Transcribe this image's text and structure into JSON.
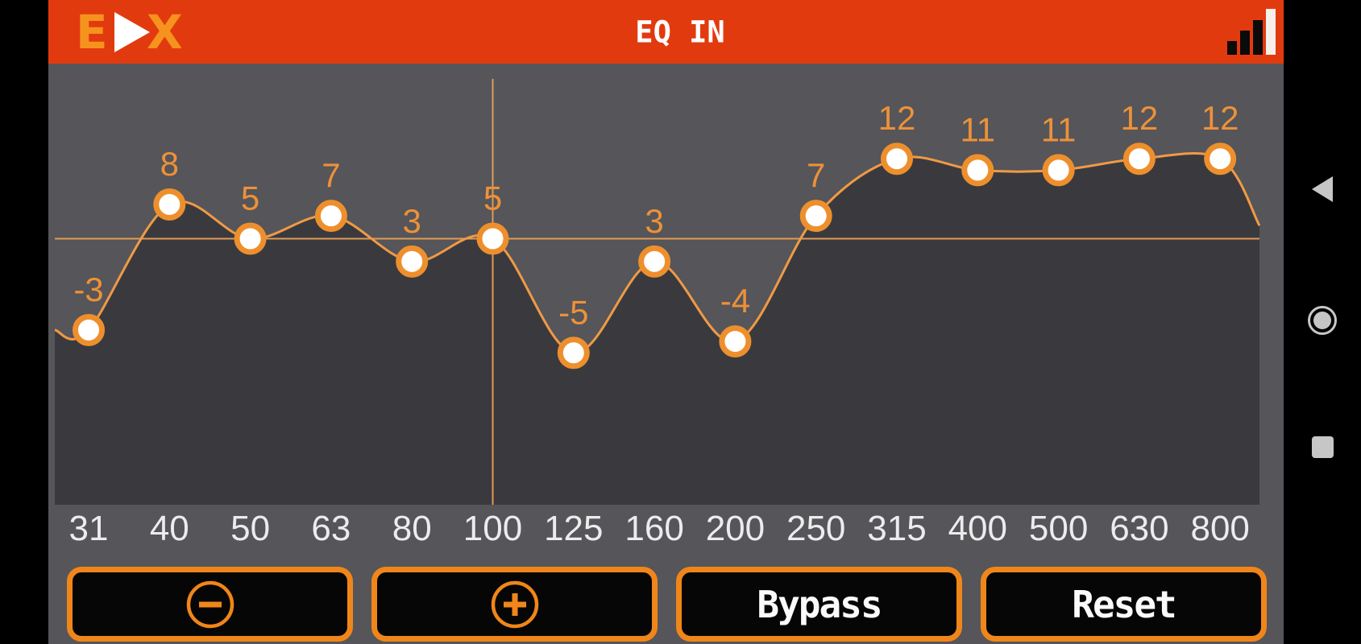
{
  "header": {
    "logo": {
      "letter_e": "E",
      "letter_x": "X"
    },
    "title": "EQ IN",
    "status_icon": "signal-bars-icon"
  },
  "chart_data": {
    "type": "line",
    "x_labels": [
      "31",
      "40",
      "50",
      "63",
      "80",
      "100",
      "125",
      "160",
      "200",
      "250",
      "315",
      "400",
      "500",
      "630",
      "800"
    ],
    "series": [
      {
        "name": "eq-band-gain-db",
        "values": [
          -3,
          8,
          5,
          7,
          3,
          5,
          -5,
          3,
          -4,
          7,
          12,
          11,
          11,
          12,
          12
        ]
      }
    ],
    "point_labels": [
      "-3",
      "8",
      "5",
      "7",
      "3",
      "5",
      "-5",
      "3",
      "-4",
      "7",
      "12",
      "11",
      "11",
      "12",
      "12"
    ],
    "selected_band": {
      "index": 5,
      "label": "100"
    },
    "ylim": [
      -18,
      19
    ],
    "grid": false,
    "legend": false,
    "crosshair_on_selected": true
  },
  "toolbar": {
    "buttons": [
      {
        "name": "decrease",
        "icon": "minus-circle-icon",
        "label": ""
      },
      {
        "name": "increase",
        "icon": "plus-circle-icon",
        "label": ""
      },
      {
        "name": "bypass",
        "icon": "",
        "label": "Bypass"
      },
      {
        "name": "reset",
        "icon": "",
        "label": "Reset"
      }
    ]
  },
  "android_nav": {
    "icons": [
      "back-triangle-icon",
      "home-circle-icon",
      "recents-square-icon"
    ]
  },
  "colors": {
    "header_bg": "#E23A0F",
    "logo_orange": "#F6921E",
    "app_bg": "#55555A",
    "curve_fill": "#3A3A3E",
    "curve_line": "#F09A45",
    "point_ring": "#EE8F2D",
    "point_fill": "#FFFFFF",
    "value_text": "#ED9138",
    "axis_text": "#ECECEC",
    "crosshair": "#E09B55",
    "button_border": "#F08619",
    "button_text": "#FAFAFA",
    "nav_icon": "#C6C6C6"
  }
}
